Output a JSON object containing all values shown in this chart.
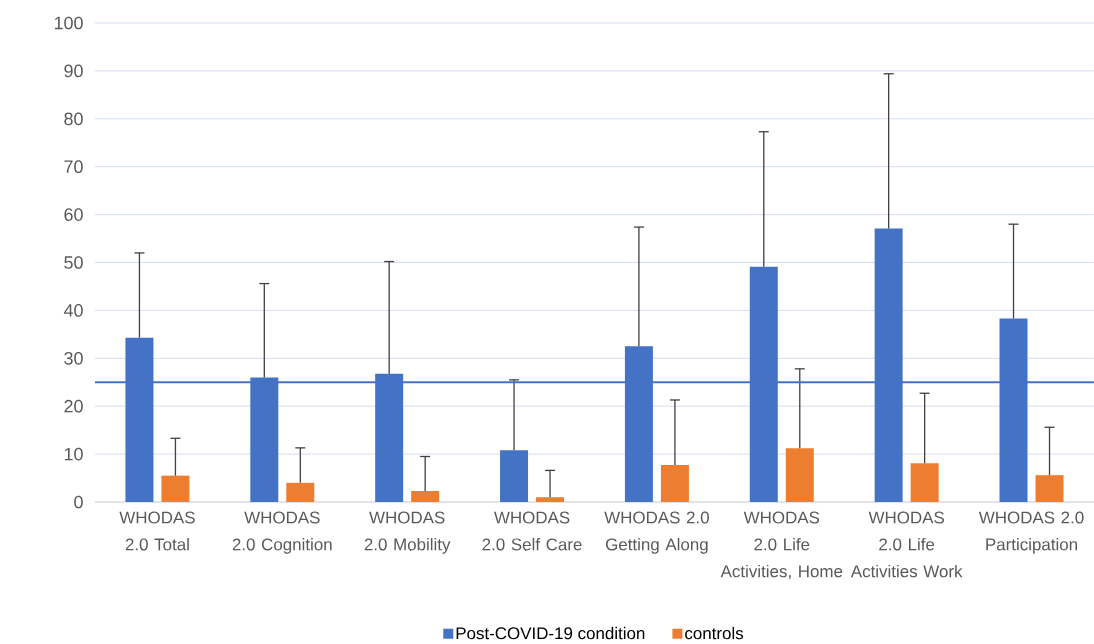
{
  "chart_data": {
    "type": "bar",
    "categories": [
      "WHODAS 2.0 Total",
      "WHODAS 2.0 Cognition",
      "WHODAS 2.0 Mobility",
      "WHODAS 2.0 Self Care",
      "WHODAS 2.0 Getting Along",
      "WHODAS 2.0 Life Activities, Home",
      "WHODAS 2.0 Life Activities Work",
      "WHODAS 2.0 Participation"
    ],
    "series": [
      {
        "name": "Post-COVID-19 condition",
        "color": "#4472c4",
        "values": [
          34.3,
          26,
          26.8,
          10.8,
          32.5,
          49.1,
          57.1,
          38.3
        ],
        "errors": [
          [
            34.3,
            52
          ],
          [
            26,
            45.6
          ],
          [
            26.8,
            50.2
          ],
          [
            10.8,
            25.5
          ],
          [
            32.5,
            57.4
          ],
          [
            49.1,
            77.3
          ],
          [
            57.1,
            89.4
          ],
          [
            38.3,
            58
          ]
        ]
      },
      {
        "name": "controls",
        "color": "#ed7d31",
        "values": [
          5.5,
          4.0,
          2.3,
          1.0,
          7.7,
          11.2,
          8.1,
          5.6
        ],
        "errors": [
          [
            5.5,
            13.3
          ],
          [
            4.0,
            11.3
          ],
          [
            2.3,
            9.5
          ],
          [
            1.0,
            6.6
          ],
          [
            7.7,
            21.3
          ],
          [
            11.2,
            27.8
          ],
          [
            8.1,
            22.7
          ],
          [
            5.6,
            15.6
          ]
        ]
      }
    ],
    "ylim": [
      0,
      100
    ],
    "yticks": [
      0,
      10,
      20,
      30,
      40,
      50,
      60,
      70,
      80,
      90,
      100
    ],
    "grid": "y",
    "legend": "bottom",
    "ref_lines": [
      {
        "axis": "y",
        "value": 25,
        "color": "#4472c4"
      }
    ]
  }
}
